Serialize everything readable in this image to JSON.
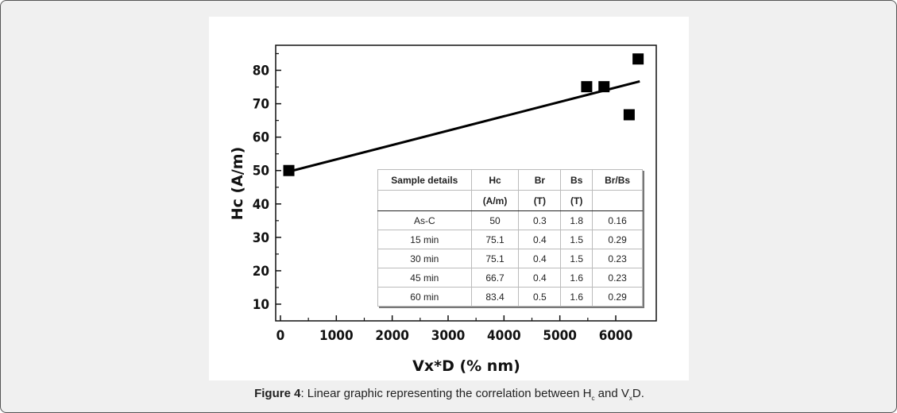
{
  "chart_data": {
    "type": "scatter",
    "xlabel": "Vx*D (% nm)",
    "ylabel": "Hc (A/m)",
    "xlim": [
      -85,
      6725
    ],
    "ylim": [
      5,
      87.5
    ],
    "xticks": [
      0,
      1000,
      2000,
      3000,
      4000,
      5000,
      6000
    ],
    "yticks": [
      10,
      20,
      30,
      40,
      50,
      60,
      70,
      80
    ],
    "grid": false,
    "points": [
      {
        "x": 150,
        "y": 50
      },
      {
        "x": 5480,
        "y": 75.1
      },
      {
        "x": 5790,
        "y": 75.1
      },
      {
        "x": 6240,
        "y": 66.7
      },
      {
        "x": 6400,
        "y": 83.4
      }
    ],
    "fit_line": {
      "x": [
        110,
        6430
      ],
      "y": [
        49.5,
        76.7
      ]
    },
    "marker_color": "#000000"
  },
  "table": {
    "header1": [
      "Sample details",
      "Hc",
      "Br",
      "Bs",
      "Br/Bs"
    ],
    "header2": [
      "",
      "(A/m)",
      "(T)",
      "(T)",
      ""
    ],
    "rows": [
      [
        "As-C",
        "50",
        "0.3",
        "1.8",
        "0.16"
      ],
      [
        "15 min",
        "75.1",
        "0.4",
        "1.5",
        "0.29"
      ],
      [
        "30 min",
        "75.1",
        "0.4",
        "1.5",
        "0.23"
      ],
      [
        "45 min",
        "66.7",
        "0.4",
        "1.6",
        "0.23"
      ],
      [
        "60 min",
        "83.4",
        "0.5",
        "1.6",
        "0.29"
      ]
    ]
  },
  "caption": {
    "label": "Figure 4",
    "text_a": ": Linear graphic representing the correlation between H",
    "sub_c": "c",
    "text_b": " and V",
    "sub_x": "x",
    "text_c": "D."
  }
}
